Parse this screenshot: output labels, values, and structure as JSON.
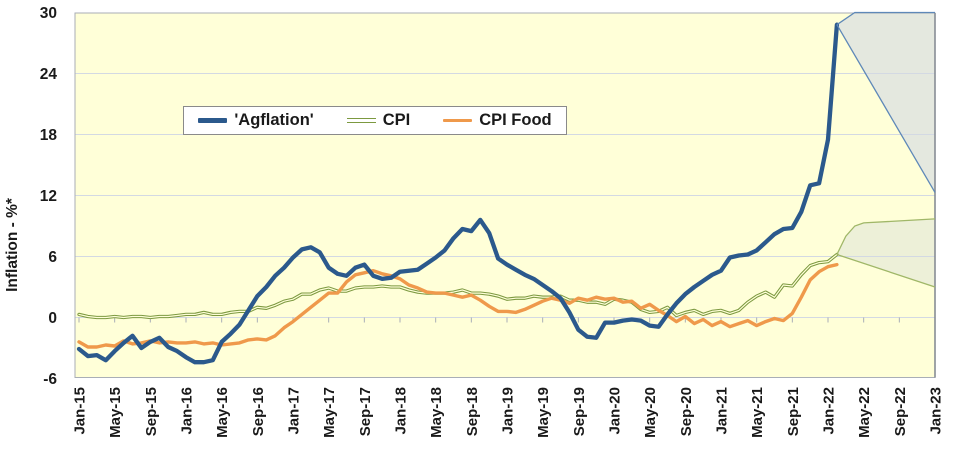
{
  "chart_data": {
    "type": "line",
    "title": "",
    "ylabel": "Inflation - %*",
    "ylim": [
      -6,
      30
    ],
    "y_ticks": [
      30,
      24,
      18,
      12,
      6,
      0,
      -6
    ],
    "x_tick_labels": [
      "Jan-15",
      "May-15",
      "Sep-15",
      "Jan-16",
      "May-16",
      "Sep-16",
      "Jan-17",
      "May-17",
      "Sep-17",
      "Jan-18",
      "May-18",
      "Sep-18",
      "Jan-19",
      "May-19",
      "Sep-19",
      "Jan-20",
      "May-20",
      "Sep-20",
      "Jan-21",
      "May-21",
      "Sep-21",
      "Jan-22",
      "May-22",
      "Sep-22",
      "Jan-23"
    ],
    "x_tick_step_months": 4,
    "months_start": "Jan-15",
    "months_end_actual": "Feb-22",
    "legend_position": "top-center",
    "grid": "horizontal-only",
    "plot_bg": "#FFFFD8",
    "gridline_color": "#D3D9E3",
    "border_color": "#A9AEB6",
    "right_border_color": "#878D95",
    "text_color": "#1a1a1a",
    "series": [
      {
        "name": "'Agflation'",
        "color": "#2B598C",
        "style": "thick",
        "values": [
          -3.1,
          -3.8,
          -3.7,
          -4.2,
          -3.3,
          -2.5,
          -1.8,
          -3.0,
          -2.4,
          -2.0,
          -2.9,
          -3.3,
          -3.9,
          -4.4,
          -4.4,
          -4.2,
          -2.4,
          -1.6,
          -0.7,
          0.7,
          2.1,
          3.0,
          4.1,
          4.9,
          5.9,
          6.7,
          6.9,
          6.4,
          4.9,
          4.3,
          4.1,
          4.9,
          5.2,
          4.1,
          3.8,
          3.9,
          4.5,
          4.6,
          4.7,
          5.3,
          5.9,
          6.6,
          7.8,
          8.7,
          8.5,
          9.6,
          8.3,
          5.8,
          5.2,
          4.7,
          4.2,
          3.8,
          3.2,
          2.6,
          1.9,
          0.5,
          -1.2,
          -1.9,
          -2.0,
          -0.5,
          -0.5,
          -0.3,
          -0.2,
          -0.3,
          -0.8,
          -0.9,
          0.3,
          1.4,
          2.3,
          3.0,
          3.6,
          4.2,
          4.6,
          5.9,
          6.1,
          6.2,
          6.6,
          7.4,
          8.2,
          8.7,
          8.8,
          10.4,
          13.0,
          13.2,
          17.5,
          28.8
        ]
      },
      {
        "name": "CPI",
        "color": "#7C9940",
        "style": "double",
        "values": [
          0.3,
          0.1,
          0.0,
          0.0,
          0.1,
          0.0,
          0.1,
          0.1,
          0.0,
          0.1,
          0.1,
          0.2,
          0.3,
          0.3,
          0.5,
          0.3,
          0.3,
          0.5,
          0.6,
          0.6,
          1.0,
          0.9,
          1.2,
          1.6,
          1.8,
          2.3,
          2.3,
          2.7,
          2.9,
          2.6,
          2.6,
          2.9,
          3.0,
          3.0,
          3.1,
          3.0,
          3.0,
          2.7,
          2.5,
          2.4,
          2.4,
          2.4,
          2.5,
          2.7,
          2.4,
          2.4,
          2.3,
          2.1,
          1.8,
          1.9,
          1.9,
          2.1,
          2.0,
          2.0,
          2.1,
          1.7,
          1.7,
          1.5,
          1.5,
          1.3,
          1.8,
          1.7,
          1.5,
          0.8,
          0.5,
          0.6,
          1.0,
          0.2,
          0.5,
          0.7,
          0.3,
          0.6,
          0.7,
          0.4,
          0.7,
          1.5,
          2.1,
          2.5,
          2.0,
          3.2,
          3.1,
          4.2,
          5.1,
          5.4,
          5.5,
          6.2
        ]
      },
      {
        "name": "CPI Food",
        "color": "#EF994B",
        "style": "medium",
        "values": [
          -2.4,
          -2.9,
          -2.9,
          -2.7,
          -2.8,
          -2.3,
          -2.6,
          -2.5,
          -2.3,
          -2.5,
          -2.4,
          -2.5,
          -2.5,
          -2.4,
          -2.6,
          -2.5,
          -2.7,
          -2.6,
          -2.5,
          -2.2,
          -2.1,
          -2.2,
          -1.8,
          -1.0,
          -0.4,
          0.3,
          1.0,
          1.7,
          2.4,
          2.4,
          3.5,
          4.2,
          4.4,
          4.6,
          4.3,
          4.1,
          3.8,
          3.2,
          2.9,
          2.5,
          2.4,
          2.4,
          2.2,
          2.0,
          2.2,
          1.7,
          1.1,
          0.6,
          0.6,
          0.5,
          0.8,
          1.2,
          1.6,
          1.9,
          1.7,
          1.4,
          1.9,
          1.7,
          2.0,
          1.8,
          1.9,
          1.5,
          1.6,
          0.9,
          1.3,
          0.7,
          0.2,
          -0.4,
          0.1,
          -0.6,
          -0.2,
          -0.8,
          -0.4,
          -0.9,
          -0.6,
          -0.3,
          -0.8,
          -0.4,
          -0.1,
          -0.3,
          0.4,
          2.0,
          3.7,
          4.5,
          5.0,
          5.2
        ]
      }
    ],
    "forecast_fans": [
      {
        "series": "'Agflation'",
        "fill": "#E4E8DF",
        "stroke": "#5E88B8",
        "upper": [
          [
            85,
            28.8
          ],
          [
            87,
            30
          ],
          [
            96,
            30
          ]
        ],
        "lower": [
          [
            85,
            28.8
          ],
          [
            96,
            12.3
          ]
        ]
      },
      {
        "series": "CPI",
        "fill": "#EDF0D8",
        "stroke": "#A0B768",
        "upper": [
          [
            85,
            6.2
          ],
          [
            86,
            8.0
          ],
          [
            87,
            9.0
          ],
          [
            88,
            9.3
          ],
          [
            96,
            9.7
          ]
        ],
        "lower": [
          [
            85,
            6.2
          ],
          [
            96,
            3.0
          ]
        ]
      }
    ]
  },
  "legend": {
    "items": [
      {
        "label": "'Agflation'"
      },
      {
        "label": "CPI"
      },
      {
        "label": "CPI Food"
      }
    ]
  }
}
